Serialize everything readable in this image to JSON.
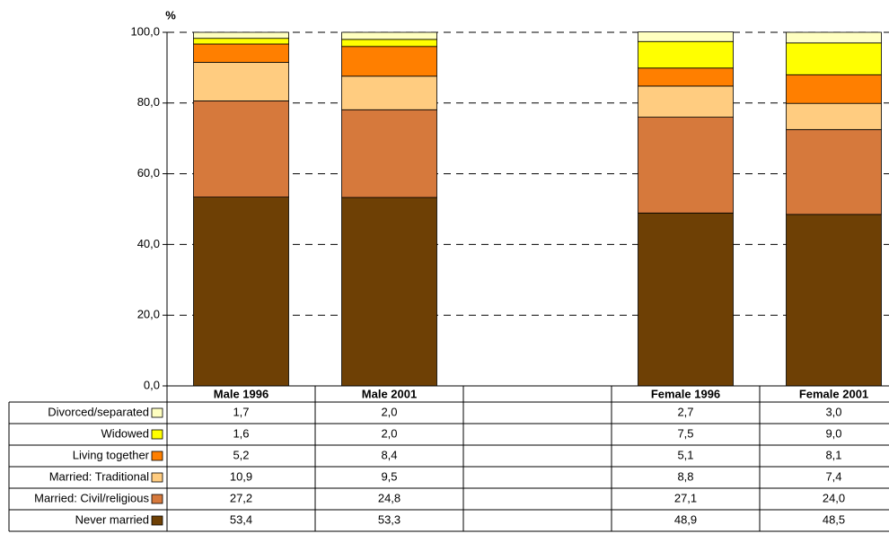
{
  "chart_data": {
    "type": "bar",
    "stacked": true,
    "y_label": "%",
    "categories": [
      "Male 1996",
      "Male 2001",
      null,
      "Female 1996",
      "Female 2001"
    ],
    "series": [
      {
        "name": "Divorced/separated",
        "color": "#ffffc0",
        "values": [
          1.7,
          2.0,
          null,
          2.7,
          3.0
        ],
        "value_labels": [
          "1,7",
          "2,0",
          null,
          "2,7",
          "3,0"
        ]
      },
      {
        "name": "Widowed",
        "color": "#ffff00",
        "values": [
          1.6,
          2.0,
          null,
          7.5,
          9.0
        ],
        "value_labels": [
          "1,6",
          "2,0",
          null,
          "7,5",
          "9,0"
        ]
      },
      {
        "name": "Living together",
        "color": "#ff7f00",
        "values": [
          5.2,
          8.4,
          null,
          5.1,
          8.1
        ],
        "value_labels": [
          "5,2",
          "8,4",
          null,
          "5,1",
          "8,1"
        ]
      },
      {
        "name": "Married: Traditional",
        "color": "#ffcc80",
        "values": [
          10.9,
          9.5,
          null,
          8.8,
          7.4
        ],
        "value_labels": [
          "10,9",
          "9,5",
          null,
          "8,8",
          "7,4"
        ]
      },
      {
        "name": "Married: Civil/religious",
        "color": "#d6793c",
        "values": [
          27.2,
          24.8,
          null,
          27.1,
          24.0
        ],
        "value_labels": [
          "27,2",
          "24,8",
          null,
          "27,1",
          "24,0"
        ]
      },
      {
        "name": "Never married",
        "color": "#6e4005",
        "values": [
          53.4,
          53.3,
          null,
          48.9,
          48.5
        ],
        "value_labels": [
          "53,4",
          "53,3",
          null,
          "48,9",
          "48,5"
        ]
      }
    ],
    "ylim": [
      0,
      100
    ],
    "yticks": [
      {
        "value": 0,
        "label": "0,0"
      },
      {
        "value": 20,
        "label": "20,0"
      },
      {
        "value": 40,
        "label": "40,0"
      },
      {
        "value": 60,
        "label": "60,0"
      },
      {
        "value": 80,
        "label": "80,0"
      },
      {
        "value": 100,
        "label": "100,0"
      }
    ],
    "grid": true
  }
}
